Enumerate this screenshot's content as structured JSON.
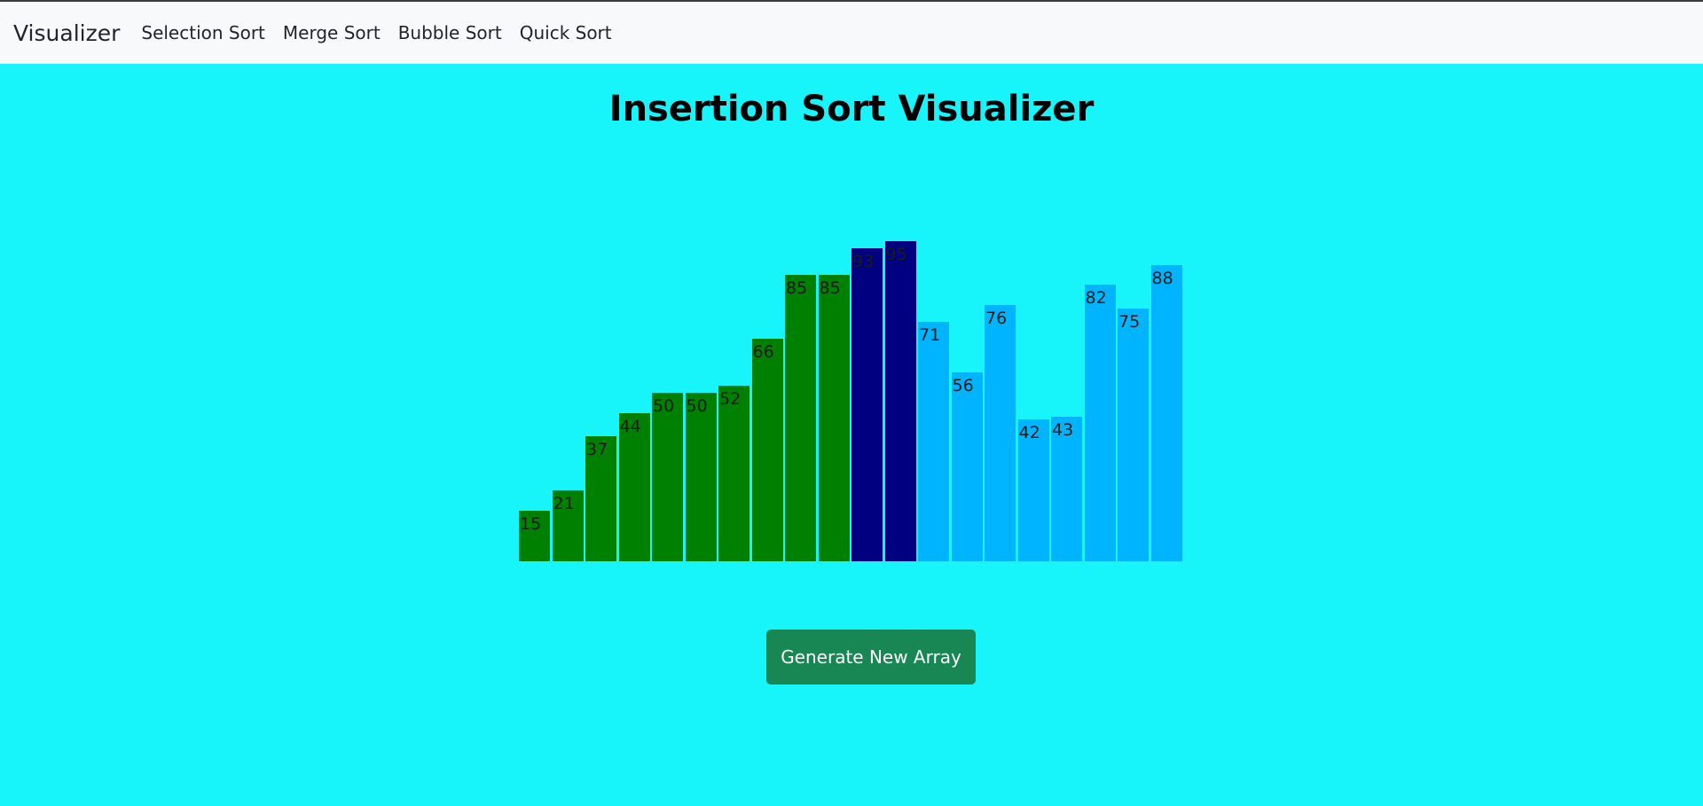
{
  "navbar": {
    "brand": "Visualizer",
    "items": [
      {
        "label": "Selection Sort"
      },
      {
        "label": "Merge Sort"
      },
      {
        "label": "Bubble Sort"
      },
      {
        "label": "Quick Sort"
      }
    ]
  },
  "page": {
    "title": "Insertion Sort Visualizer"
  },
  "colors": {
    "background": "#17f5fb",
    "sorted": "#008000",
    "active": "#000080",
    "unsorted": "#00b4ff",
    "button": "#198754"
  },
  "chart_data": {
    "type": "bar",
    "values": [
      15,
      21,
      37,
      44,
      50,
      50,
      52,
      66,
      85,
      85,
      93,
      95,
      71,
      56,
      76,
      42,
      43,
      82,
      75,
      88
    ],
    "states": [
      "sorted",
      "sorted",
      "sorted",
      "sorted",
      "sorted",
      "sorted",
      "sorted",
      "sorted",
      "sorted",
      "sorted",
      "active",
      "active",
      "unsorted",
      "unsorted",
      "unsorted",
      "unsorted",
      "unsorted",
      "unsorted",
      "unsorted",
      "unsorted"
    ]
  },
  "actions": {
    "generate_label": "Generate New Array"
  }
}
